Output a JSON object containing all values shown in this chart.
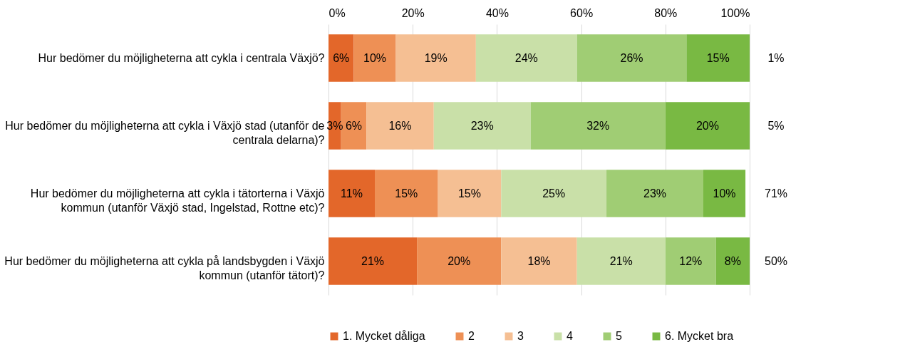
{
  "chart_data": {
    "type": "bar",
    "orientation": "horizontal",
    "stacked": true,
    "categories": [
      "Hur bedömer du möjligheterna att cykla i centrala Växjö?",
      "Hur bedömer du möjligheterna att cykla i Växjö stad (utanför de centrala delarna)?",
      "Hur bedömer du möjligheterna att cykla i tätorterna i Växjö kommun (utanför Växjö stad, Ingelstad, Rottne etc)?",
      "Hur bedömer du möjligheterna att cykla på landsbygden i Växjö kommun (utanför tätort)?"
    ],
    "series": [
      {
        "name": "1. Mycket dåliga",
        "color": "#e3672a",
        "values": [
          6,
          3,
          11,
          21
        ],
        "value_labels": [
          "6%",
          "3%",
          "11%",
          "21%"
        ]
      },
      {
        "name": "2",
        "color": "#ee9055",
        "values": [
          10,
          6,
          15,
          20
        ],
        "value_labels": [
          "10%",
          "6%",
          "15%",
          "20%"
        ]
      },
      {
        "name": "3",
        "color": "#f5bf93",
        "values": [
          19,
          16,
          15,
          18
        ],
        "value_labels": [
          "19%",
          "16%",
          "15%",
          "18%"
        ]
      },
      {
        "name": "4",
        "color": "#c9e0a8",
        "values": [
          24,
          23,
          25,
          21
        ],
        "value_labels": [
          "24%",
          "23%",
          "25%",
          "21%"
        ]
      },
      {
        "name": "5",
        "color": "#a0cd74",
        "values": [
          26,
          32,
          23,
          12
        ],
        "value_labels": [
          "26%",
          "32%",
          "23%",
          "12%"
        ]
      },
      {
        "name": "6. Mycket bra",
        "color": "#79b943",
        "values": [
          15,
          20,
          10,
          8
        ],
        "value_labels": [
          "15%",
          "20%",
          "10%",
          "8%"
        ]
      }
    ],
    "xlim": [
      0,
      100
    ],
    "xticks": [
      {
        "value": 0,
        "label": "0%"
      },
      {
        "value": 20,
        "label": "20%"
      },
      {
        "value": 40,
        "label": "40%"
      },
      {
        "value": 60,
        "label": "60%"
      },
      {
        "value": 80,
        "label": "80%"
      },
      {
        "value": 100,
        "label": "100%"
      }
    ],
    "grid": "x",
    "legend": "bottom",
    "annotations": [
      "1%",
      "5%",
      "71%",
      "50%"
    ]
  }
}
